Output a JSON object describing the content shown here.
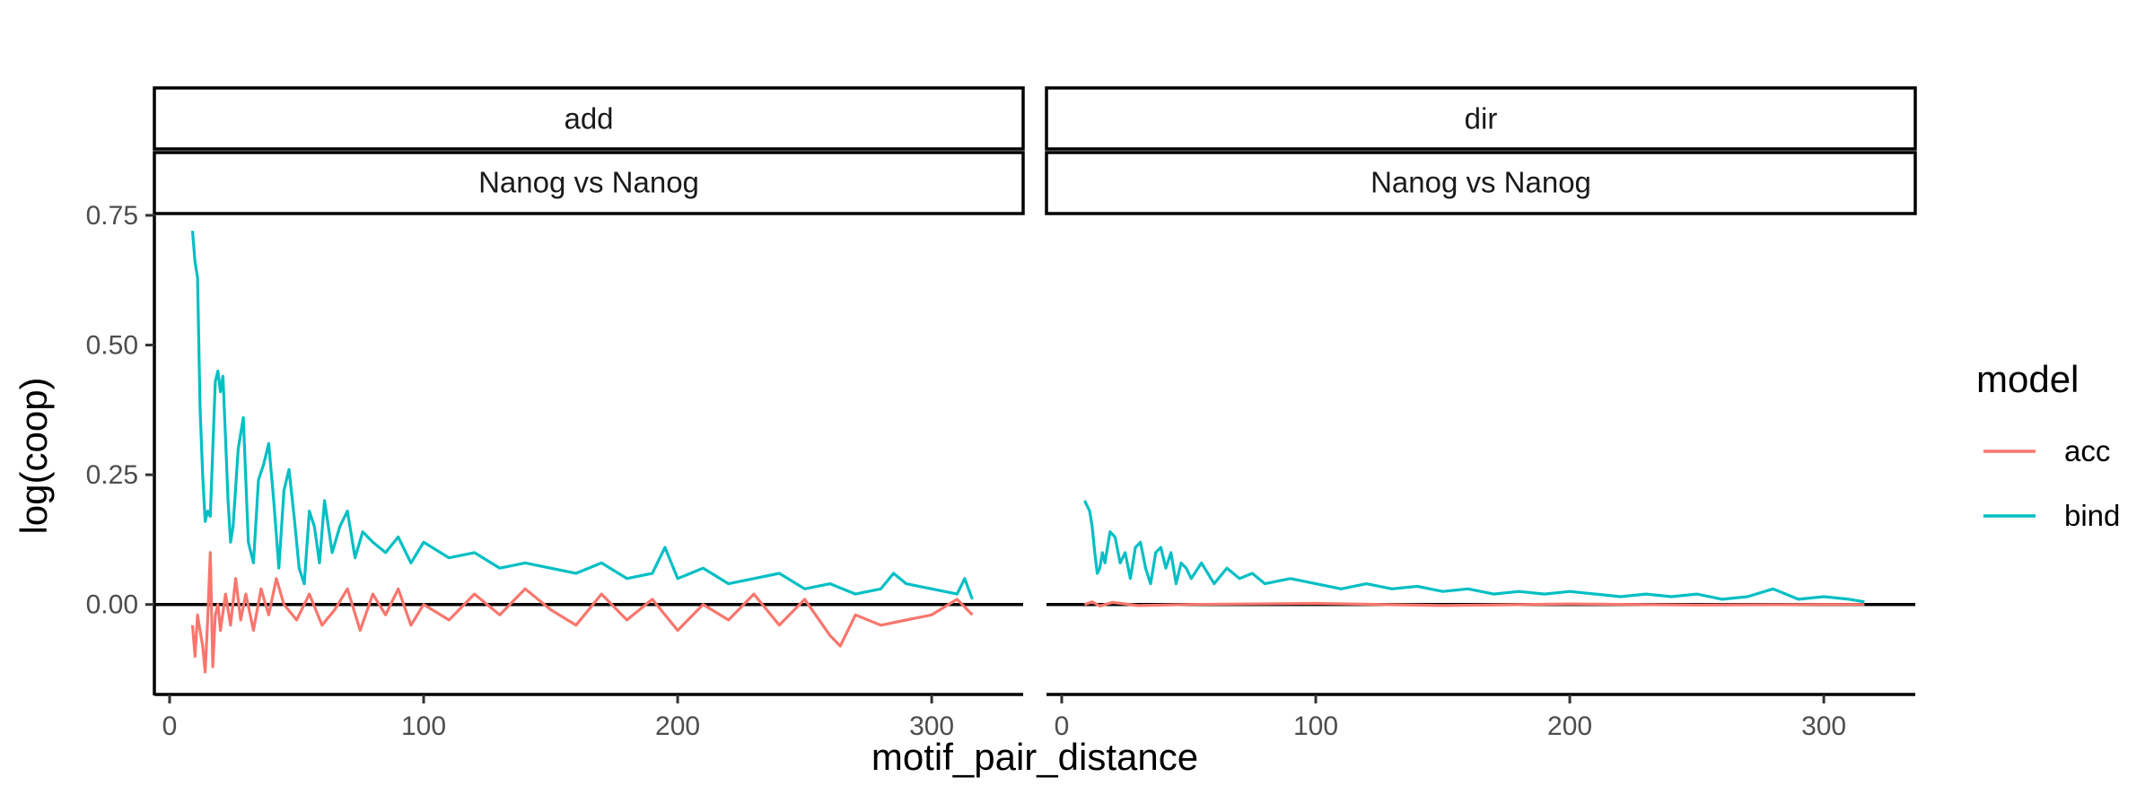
{
  "chart_data": {
    "type": "line",
    "facet_row_label": "Nanog vs Nanog",
    "xlabel": "motif_pair_distance",
    "ylabel": "log(coop)",
    "xlim": [
      -6,
      336
    ],
    "ylim": [
      -0.17,
      0.75
    ],
    "x_ticks": [
      0,
      100,
      200,
      300
    ],
    "y_ticks": [
      0.0,
      0.25,
      0.5,
      0.75
    ],
    "y_tick_labels": [
      "0.00",
      "0.25",
      "0.50",
      "0.75"
    ],
    "reference_line_y": 0,
    "legend": {
      "title": "model",
      "position": "right",
      "entries": [
        {
          "name": "acc",
          "color": "#F8766D"
        },
        {
          "name": "bind",
          "color": "#00BFC4"
        }
      ]
    },
    "panels": [
      {
        "name": "add",
        "row_label": "Nanog vs Nanog",
        "series": [
          {
            "name": "bind",
            "color": "#00BFC4",
            "x": [
              9,
              10,
              11,
              12,
              13,
              14,
              15,
              16,
              17,
              18,
              19,
              20,
              21,
              22,
              23,
              24,
              25,
              27,
              29,
              31,
              33,
              35,
              37,
              39,
              41,
              43,
              45,
              47,
              49,
              51,
              53,
              55,
              57,
              59,
              61,
              64,
              67,
              70,
              73,
              76,
              80,
              85,
              90,
              95,
              100,
              110,
              120,
              130,
              140,
              150,
              160,
              170,
              180,
              190,
              195,
              200,
              210,
              220,
              230,
              240,
              250,
              260,
              270,
              280,
              285,
              290,
              300,
              310,
              313,
              316
            ],
            "y": [
              0.72,
              0.66,
              0.63,
              0.38,
              0.25,
              0.16,
              0.18,
              0.17,
              0.3,
              0.43,
              0.45,
              0.41,
              0.44,
              0.32,
              0.2,
              0.12,
              0.15,
              0.3,
              0.36,
              0.12,
              0.08,
              0.24,
              0.27,
              0.31,
              0.2,
              0.07,
              0.22,
              0.26,
              0.17,
              0.07,
              0.04,
              0.18,
              0.15,
              0.08,
              0.2,
              0.1,
              0.15,
              0.18,
              0.09,
              0.14,
              0.12,
              0.1,
              0.13,
              0.08,
              0.12,
              0.09,
              0.1,
              0.07,
              0.08,
              0.07,
              0.06,
              0.08,
              0.05,
              0.06,
              0.11,
              0.05,
              0.07,
              0.04,
              0.05,
              0.06,
              0.03,
              0.04,
              0.02,
              0.03,
              0.06,
              0.04,
              0.03,
              0.02,
              0.05,
              0.01
            ]
          },
          {
            "name": "acc",
            "color": "#F8766D",
            "x": [
              9,
              10,
              11,
              12,
              13,
              14,
              15,
              16,
              17,
              18,
              19,
              20,
              22,
              24,
              26,
              28,
              30,
              33,
              36,
              39,
              42,
              45,
              50,
              55,
              60,
              65,
              70,
              75,
              80,
              85,
              90,
              95,
              100,
              110,
              120,
              130,
              140,
              150,
              160,
              170,
              180,
              190,
              200,
              210,
              220,
              230,
              240,
              250,
              260,
              264,
              270,
              280,
              290,
              300,
              310,
              316
            ],
            "y": [
              -0.04,
              -0.1,
              -0.02,
              -0.05,
              -0.08,
              -0.13,
              -0.03,
              0.1,
              -0.12,
              -0.02,
              0.0,
              -0.05,
              0.02,
              -0.04,
              0.05,
              -0.03,
              0.02,
              -0.05,
              0.03,
              -0.02,
              0.05,
              0.0,
              -0.03,
              0.02,
              -0.04,
              -0.01,
              0.03,
              -0.05,
              0.02,
              -0.02,
              0.03,
              -0.04,
              0.0,
              -0.03,
              0.02,
              -0.02,
              0.03,
              -0.01,
              -0.04,
              0.02,
              -0.03,
              0.01,
              -0.05,
              0.0,
              -0.03,
              0.02,
              -0.04,
              0.01,
              -0.06,
              -0.08,
              -0.02,
              -0.04,
              -0.03,
              -0.02,
              0.01,
              -0.02
            ]
          }
        ]
      },
      {
        "name": "dir",
        "row_label": "Nanog vs Nanog",
        "series": [
          {
            "name": "bind",
            "color": "#00BFC4",
            "x": [
              9,
              10,
              11,
              12,
              13,
              14,
              15,
              16,
              17,
              19,
              21,
              23,
              25,
              27,
              29,
              31,
              33,
              35,
              37,
              39,
              41,
              43,
              45,
              47,
              49,
              51,
              55,
              60,
              65,
              70,
              75,
              80,
              90,
              100,
              110,
              120,
              130,
              140,
              150,
              160,
              170,
              180,
              190,
              200,
              210,
              220,
              230,
              240,
              250,
              260,
              270,
              280,
              290,
              300,
              310,
              316
            ],
            "y": [
              0.2,
              0.19,
              0.18,
              0.15,
              0.1,
              0.06,
              0.07,
              0.1,
              0.08,
              0.14,
              0.13,
              0.08,
              0.1,
              0.05,
              0.11,
              0.12,
              0.07,
              0.04,
              0.1,
              0.11,
              0.07,
              0.1,
              0.04,
              0.08,
              0.07,
              0.05,
              0.08,
              0.04,
              0.07,
              0.05,
              0.06,
              0.04,
              0.05,
              0.04,
              0.03,
              0.04,
              0.03,
              0.035,
              0.025,
              0.03,
              0.02,
              0.025,
              0.02,
              0.025,
              0.02,
              0.015,
              0.02,
              0.015,
              0.02,
              0.01,
              0.015,
              0.03,
              0.01,
              0.015,
              0.01,
              0.005
            ]
          },
          {
            "name": "acc",
            "color": "#F8766D",
            "x": [
              9,
              12,
              15,
              20,
              30,
              50,
              100,
              150,
              200,
              250,
              300,
              316
            ],
            "y": [
              0.0,
              0.005,
              -0.003,
              0.004,
              -0.002,
              0.0,
              0.002,
              -0.002,
              0.001,
              -0.001,
              0.0,
              0.0
            ]
          }
        ]
      }
    ]
  }
}
